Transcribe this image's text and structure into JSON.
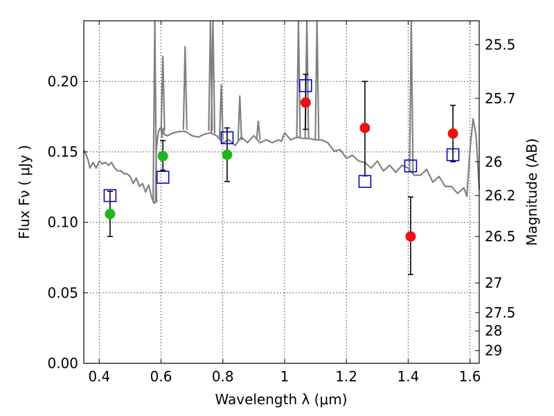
{
  "chart_data": {
    "type": "scatter",
    "title": "",
    "xlabel": "Wavelength  λ (μm)",
    "ylabel": "Flux  Fν  ( μJy )",
    "y2label": "Magnitude (AB)",
    "xlim": [
      0.35,
      1.63
    ],
    "ylim": [
      0.0,
      0.243
    ],
    "grid": true,
    "x_ticks": [
      0.4,
      0.6,
      0.8,
      1.0,
      1.2,
      1.4,
      1.6
    ],
    "x_tick_labels": [
      "0.4",
      "0.6",
      "0.8",
      "1",
      "1.2",
      "1.4",
      "1.6"
    ],
    "y_ticks": [
      0.0,
      0.05,
      0.1,
      0.15,
      0.2
    ],
    "y_tick_labels": [
      "0.00",
      "0.05",
      "0.10",
      "0.15",
      "0.20"
    ],
    "y2_ticks": [
      {
        "label": "25.5",
        "flux": 0.226
      },
      {
        "label": "25.7",
        "flux": 0.188
      },
      {
        "label": "26",
        "flux": 0.143
      },
      {
        "label": "26.2",
        "flux": 0.119
      },
      {
        "label": "26.5",
        "flux": 0.09
      },
      {
        "label": "27",
        "flux": 0.057
      },
      {
        "label": "27.5",
        "flux": 0.036
      },
      {
        "label": "28",
        "flux": 0.023
      },
      {
        "label": "29",
        "flux": 0.009
      }
    ],
    "colors": {
      "model": "#808080",
      "green": "#1fb51f",
      "red": "#ee1111",
      "square": "#0000cc",
      "errorbar": "#000000",
      "grid": "#000000"
    },
    "series": [
      {
        "name": "green_points",
        "marker": "circle",
        "color": "#1fb51f",
        "points": [
          {
            "x": 0.435,
            "y": 0.106,
            "err_low": 0.09,
            "err_high": 0.122
          },
          {
            "x": 0.606,
            "y": 0.147,
            "err_low": 0.137,
            "err_high": 0.158
          },
          {
            "x": 0.814,
            "y": 0.148,
            "err_low": 0.129,
            "err_high": 0.167
          }
        ]
      },
      {
        "name": "red_points",
        "marker": "circle",
        "color": "#ee1111",
        "points": [
          {
            "x": 1.068,
            "y": 0.185,
            "err_low": 0.166,
            "err_high": 0.205
          },
          {
            "x": 1.26,
            "y": 0.167,
            "err_low": 0.133,
            "err_high": 0.2
          },
          {
            "x": 1.408,
            "y": 0.09,
            "err_low": 0.063,
            "err_high": 0.118
          },
          {
            "x": 1.545,
            "y": 0.163,
            "err_low": 0.143,
            "err_high": 0.183
          }
        ]
      },
      {
        "name": "model_squares",
        "marker": "square",
        "color": "#0000cc",
        "points": [
          {
            "x": 0.435,
            "y": 0.119
          },
          {
            "x": 0.606,
            "y": 0.132
          },
          {
            "x": 0.814,
            "y": 0.16
          },
          {
            "x": 1.068,
            "y": 0.197
          },
          {
            "x": 1.26,
            "y": 0.129
          },
          {
            "x": 1.408,
            "y": 0.14
          },
          {
            "x": 1.545,
            "y": 0.148
          }
        ]
      },
      {
        "name": "model_spectrum",
        "marker": "line",
        "color": "#808080",
        "x": [
          0.35,
          0.36,
          0.365,
          0.37,
          0.38,
          0.39,
          0.4,
          0.41,
          0.42,
          0.43,
          0.44,
          0.45,
          0.46,
          0.47,
          0.48,
          0.49,
          0.5,
          0.51,
          0.52,
          0.53,
          0.54,
          0.55,
          0.56,
          0.57,
          0.578,
          0.582,
          0.585,
          0.588,
          0.592,
          0.596,
          0.6,
          0.603,
          0.606,
          0.61,
          0.62,
          0.64,
          0.66,
          0.68,
          0.7,
          0.72,
          0.74,
          0.76,
          0.78,
          0.8,
          0.82,
          0.84,
          0.86,
          0.88,
          0.9,
          0.92,
          0.94,
          0.96,
          0.98,
          0.99,
          1.0,
          1.02,
          1.04,
          1.06,
          1.08,
          1.1,
          1.11,
          1.12,
          1.14,
          1.16,
          1.18,
          1.2,
          1.22,
          1.24,
          1.26,
          1.28,
          1.3,
          1.32,
          1.34,
          1.36,
          1.38,
          1.4,
          1.42,
          1.44,
          1.46,
          1.48,
          1.5,
          1.52,
          1.54,
          1.56,
          1.58,
          1.59,
          1.6,
          1.61,
          1.62,
          1.63
        ],
        "y": [
          0.15,
          0.148,
          0.142,
          0.14,
          0.141,
          0.14,
          0.142,
          0.143,
          0.141,
          0.142,
          0.141,
          0.14,
          0.135,
          0.138,
          0.133,
          0.136,
          0.131,
          0.129,
          0.13,
          0.127,
          0.126,
          0.123,
          0.125,
          0.119,
          0.112,
          0.116,
          0.15,
          0.16,
          0.163,
          0.168,
          0.166,
          0.162,
          0.165,
          0.164,
          0.16,
          0.165,
          0.163,
          0.166,
          0.16,
          0.162,
          0.161,
          0.165,
          0.16,
          0.158,
          0.157,
          0.156,
          0.159,
          0.158,
          0.16,
          0.158,
          0.157,
          0.158,
          0.157,
          0.159,
          0.162,
          0.16,
          0.159,
          0.161,
          0.158,
          0.16,
          0.157,
          0.16,
          0.155,
          0.152,
          0.15,
          0.147,
          0.146,
          0.145,
          0.141,
          0.14,
          0.142,
          0.138,
          0.139,
          0.137,
          0.139,
          0.14,
          0.132,
          0.135,
          0.136,
          0.13,
          0.131,
          0.127,
          0.124,
          0.122,
          0.123,
          0.12,
          0.15,
          0.175,
          0.16,
          0.125
        ]
      }
    ],
    "emission_lines": [
      {
        "x": 0.58,
        "peak": 0.243
      },
      {
        "x": 0.606,
        "peak": 0.218
      },
      {
        "x": 0.678,
        "peak": 0.225
      },
      {
        "x": 0.76,
        "peak": 0.243
      },
      {
        "x": 0.768,
        "peak": 0.243
      },
      {
        "x": 0.795,
        "peak": 0.198
      },
      {
        "x": 0.855,
        "peak": 0.19
      },
      {
        "x": 0.915,
        "peak": 0.172
      },
      {
        "x": 1.045,
        "peak": 0.243
      },
      {
        "x": 1.072,
        "peak": 0.243
      },
      {
        "x": 1.105,
        "peak": 0.243
      },
      {
        "x": 1.41,
        "peak": 0.243
      }
    ]
  }
}
